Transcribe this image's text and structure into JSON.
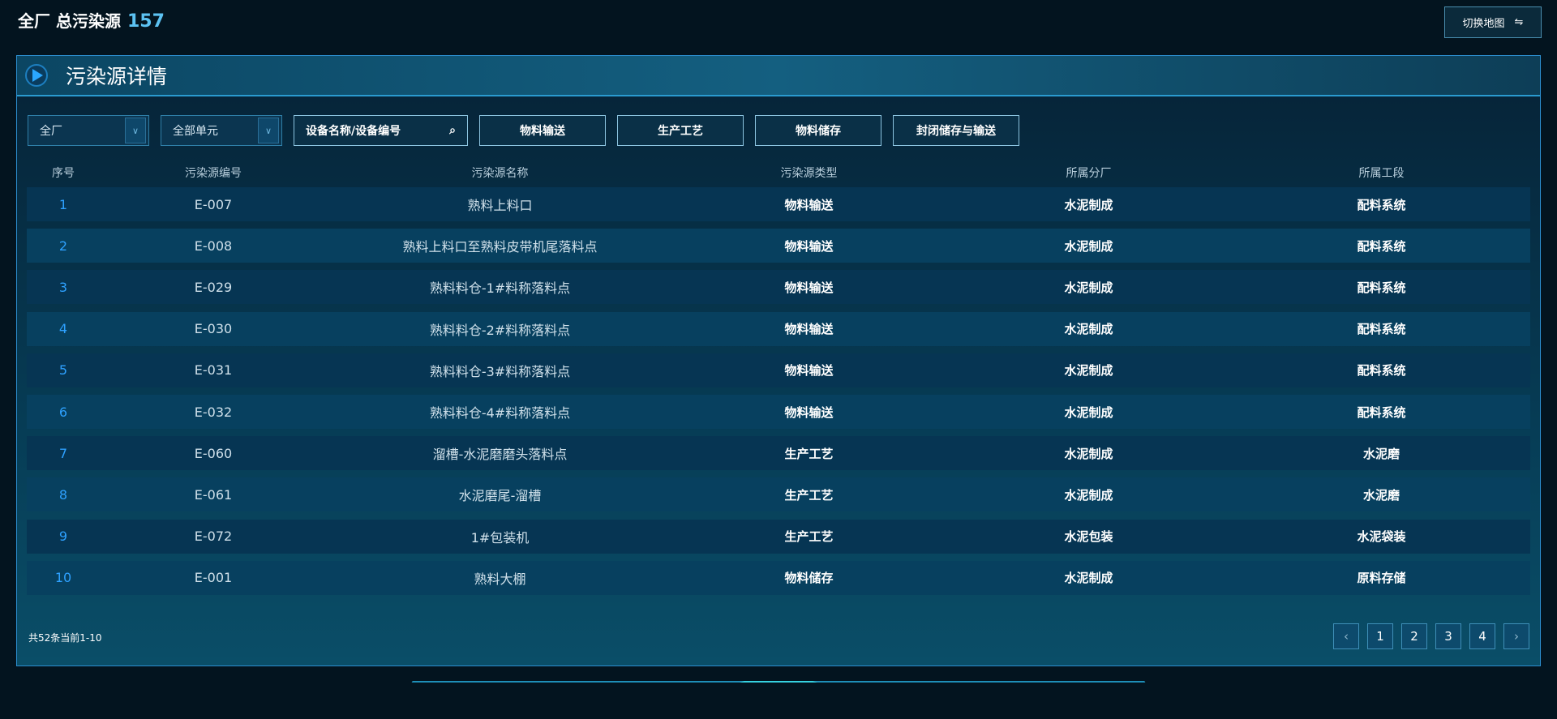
{
  "top": {
    "title": "全厂 总污染源",
    "count": "157",
    "switch_label": "切换地图",
    "switch_icon": "swap-arrows-icon"
  },
  "panel": {
    "title": "污染源详情"
  },
  "filters": {
    "factory": "全厂",
    "unit": "全部单元",
    "search_placeholder": "设备名称/设备编号",
    "categories": [
      "物料输送",
      "生产工艺",
      "物料储存",
      "封闭储存与输送"
    ]
  },
  "table": {
    "headers": [
      "序号",
      "污染源编号",
      "污染源名称",
      "污染源类型",
      "所属分厂",
      "所属工段"
    ],
    "rows": [
      [
        "1",
        "E-007",
        "熟料上料口",
        "物料输送",
        "水泥制成",
        "配料系统"
      ],
      [
        "2",
        "E-008",
        "熟料上料口至熟料皮带机尾落料点",
        "物料输送",
        "水泥制成",
        "配料系统"
      ],
      [
        "3",
        "E-029",
        "熟料料仓-1#料称落料点",
        "物料输送",
        "水泥制成",
        "配料系统"
      ],
      [
        "4",
        "E-030",
        "熟料料仓-2#料称落料点",
        "物料输送",
        "水泥制成",
        "配料系统"
      ],
      [
        "5",
        "E-031",
        "熟料料仓-3#料称落料点",
        "物料输送",
        "水泥制成",
        "配料系统"
      ],
      [
        "6",
        "E-032",
        "熟料料仓-4#料称落料点",
        "物料输送",
        "水泥制成",
        "配料系统"
      ],
      [
        "7",
        "E-060",
        "溜槽-水泥磨磨头落料点",
        "生产工艺",
        "水泥制成",
        "水泥磨"
      ],
      [
        "8",
        "E-061",
        "水泥磨尾-溜槽",
        "生产工艺",
        "水泥制成",
        "水泥磨"
      ],
      [
        "9",
        "E-072",
        "1#包装机",
        "生产工艺",
        "水泥包装",
        "水泥袋装"
      ],
      [
        "10",
        "E-001",
        "熟料大棚",
        "物料储存",
        "水泥制成",
        "原料存储"
      ]
    ]
  },
  "pagination": {
    "summary": "共52条当前1-10",
    "prev": "‹",
    "next": "›",
    "pages": [
      "1",
      "2",
      "3",
      "4"
    ]
  }
}
